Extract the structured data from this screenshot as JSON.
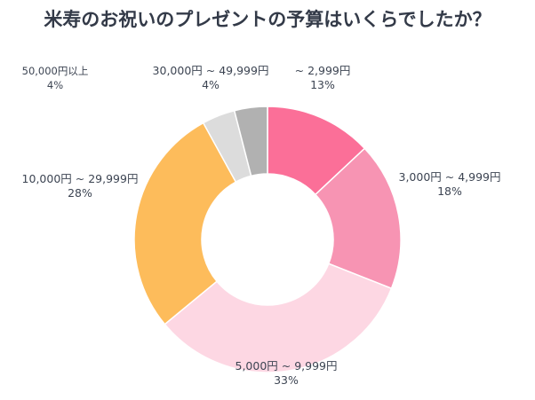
{
  "chart_data": {
    "type": "pie",
    "title": "米寿のお祝いのプレゼントの予算はいくらでしたか？",
    "donut": true,
    "categories": [
      "~ 2,999円",
      "3,000円 ~ 4,999円",
      "5,000円 ~ 9,999円",
      "10,000円 ~ 29,999円",
      "30,000円 ~ 49,999円",
      "50,000円以上"
    ],
    "values": [
      13,
      18,
      33,
      28,
      4,
      4
    ],
    "value_labels": [
      "13%",
      "18%",
      "33%",
      "28%",
      "4%",
      "4%"
    ],
    "colors": [
      "#fb6f98",
      "#f794b3",
      "#fdd7e3",
      "#fdbc5b",
      "#dcdcdc",
      "#b1b1b1"
    ]
  }
}
